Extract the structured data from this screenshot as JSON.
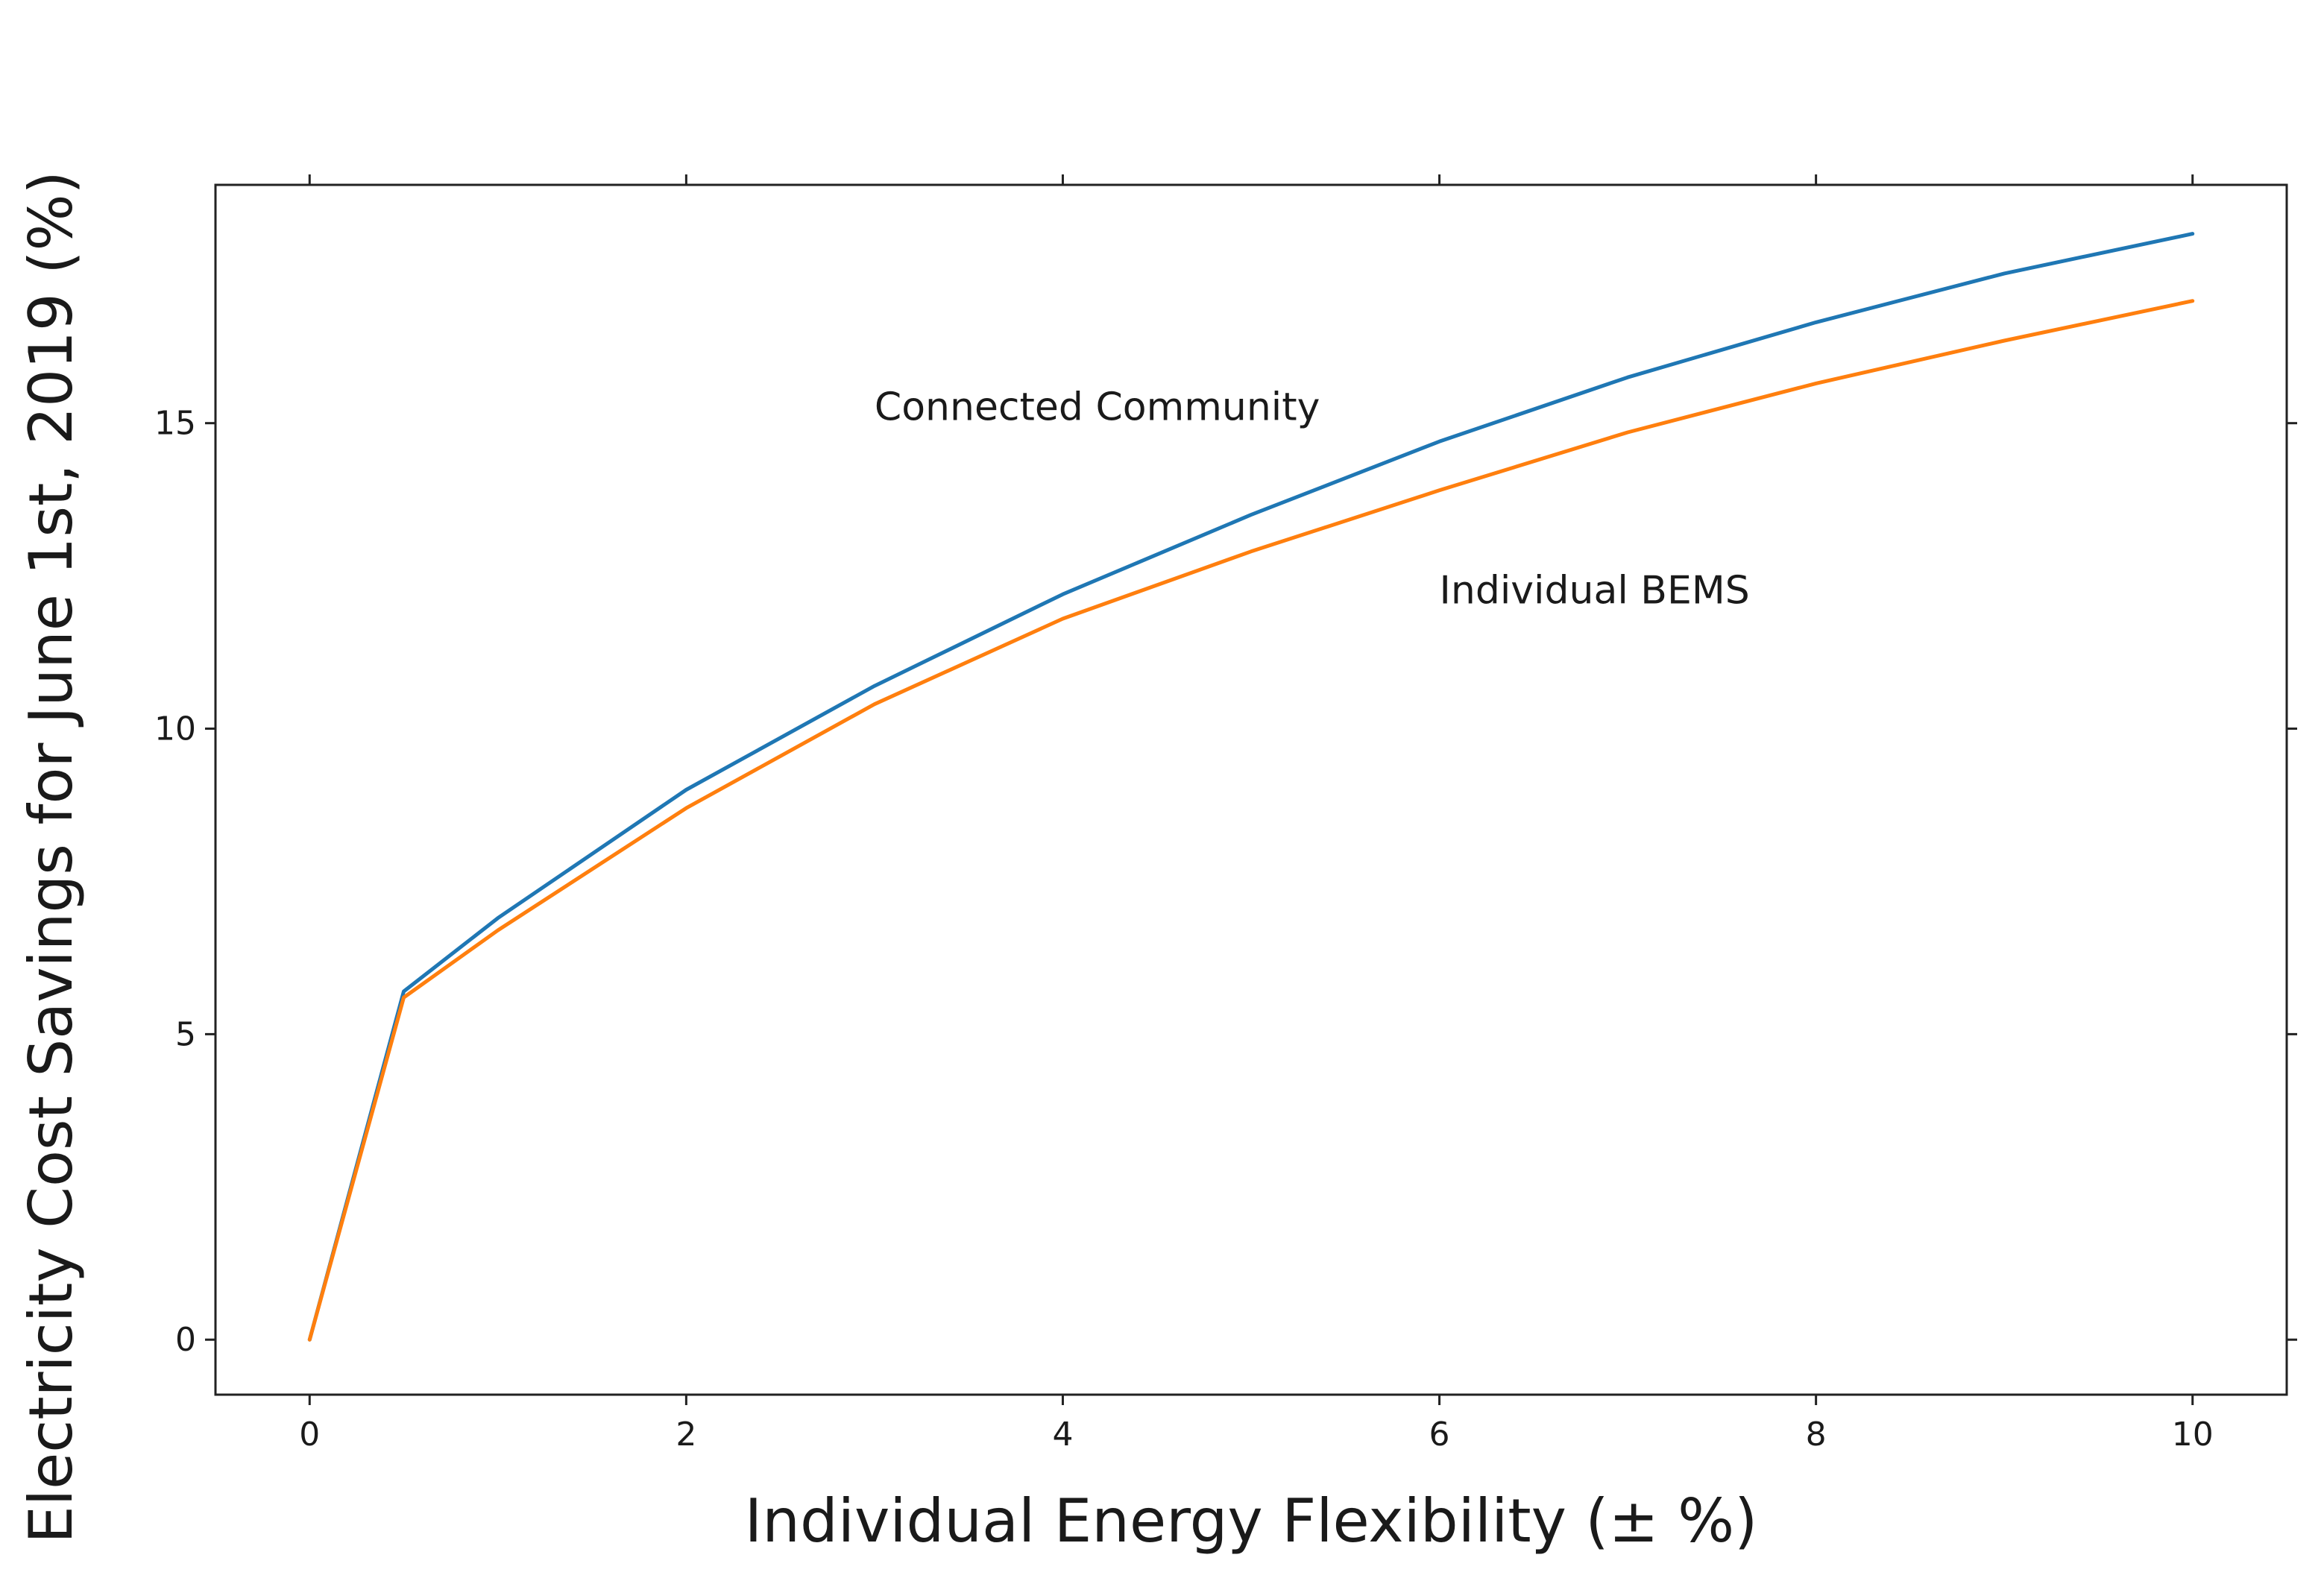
{
  "chart_data": {
    "type": "line",
    "title": "",
    "xlabel": "Individual Energy Flexibility (± %)",
    "ylabel": "Electricity Cost Savings for June 1st, 2019 (%)",
    "xlim": [
      -0.5,
      10.5
    ],
    "ylim": [
      -0.9,
      18.9
    ],
    "xticks": [
      0,
      2,
      4,
      6,
      8,
      10
    ],
    "yticks": [
      0,
      5,
      10,
      15
    ],
    "xtick_labels": [
      "0",
      "2",
      "4",
      "6",
      "8",
      "10"
    ],
    "ytick_labels": [
      "0",
      "5",
      "10",
      "15"
    ],
    "grid": false,
    "series": [
      {
        "name": "Connected Community",
        "color": "#1f77b4",
        "x": [
          0,
          0.5,
          1,
          2,
          3,
          4,
          5,
          6,
          7,
          8,
          9,
          10
        ],
        "y": [
          0,
          5.7,
          6.9,
          9.0,
          10.7,
          12.2,
          13.5,
          14.7,
          15.75,
          16.65,
          17.45,
          18.1
        ]
      },
      {
        "name": "Individual BEMS",
        "color": "#ff7f0e",
        "x": [
          0,
          0.5,
          1,
          2,
          3,
          4,
          5,
          6,
          7,
          8,
          9,
          10
        ],
        "y": [
          0,
          5.6,
          6.7,
          8.7,
          10.4,
          11.8,
          12.9,
          13.9,
          14.85,
          15.65,
          16.35,
          17.0
        ]
      }
    ],
    "annotations": [
      {
        "text": "Connected Community",
        "x": 3.0,
        "y": 15.05
      },
      {
        "text": "Individual BEMS",
        "x": 6.0,
        "y": 12.05
      }
    ]
  }
}
